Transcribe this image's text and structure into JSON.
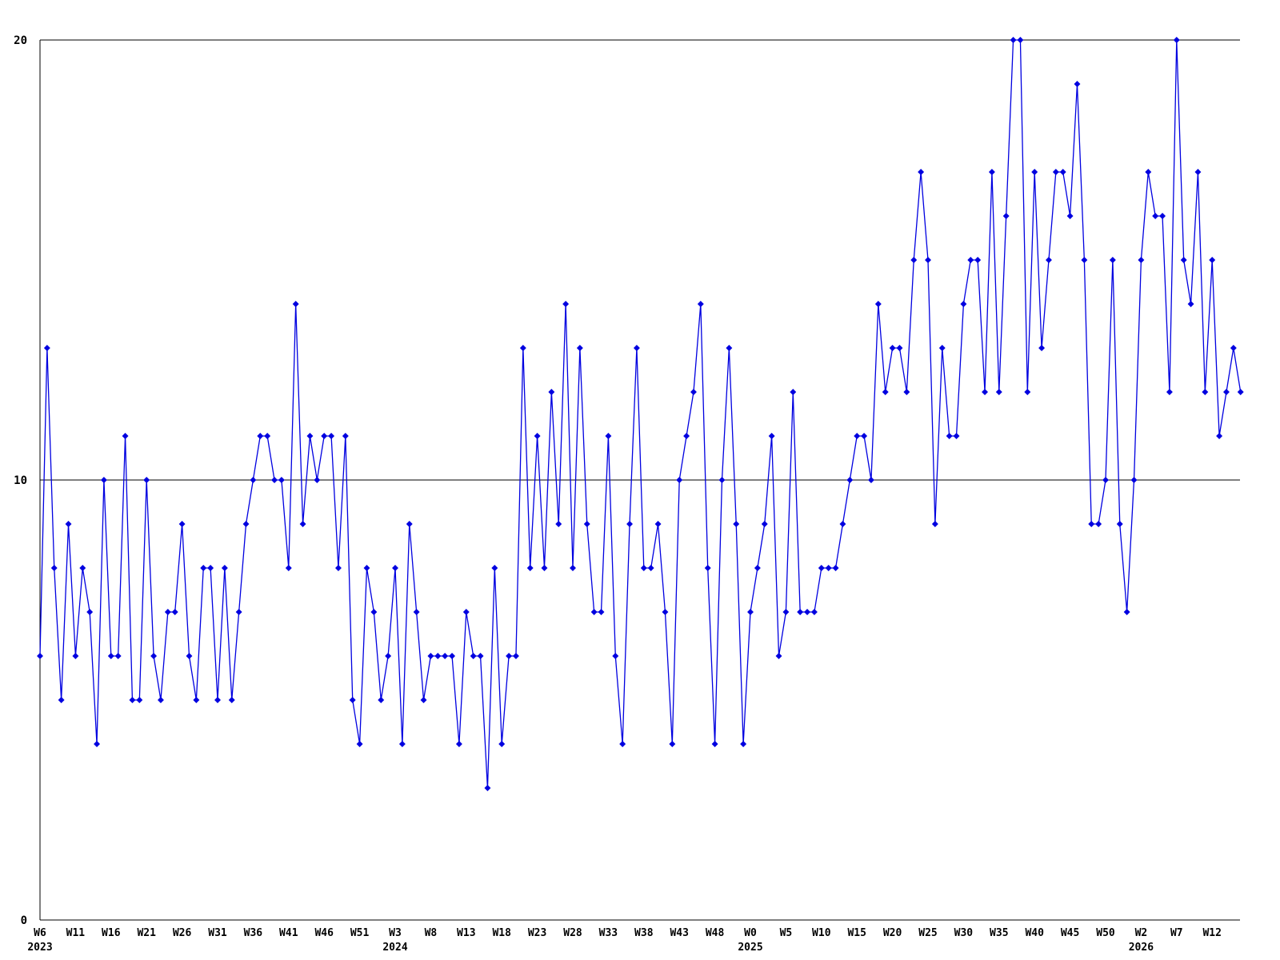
{
  "chart_data": {
    "type": "line",
    "title": "",
    "xlabel": "",
    "ylabel": "",
    "ylim": [
      0,
      20
    ],
    "yticks": [
      "0",
      "10",
      "20"
    ],
    "grid_levels": [
      10,
      20
    ],
    "legend": "none",
    "line_color": "#0000e0",
    "axis_color": "#000000",
    "marker": "diamond",
    "x_tick_every": 5,
    "ticks": [
      {
        "label": "W6",
        "year": "2023"
      },
      {
        "label": "W11"
      },
      {
        "label": "W16"
      },
      {
        "label": "W21"
      },
      {
        "label": "W26"
      },
      {
        "label": "W31"
      },
      {
        "label": "W36"
      },
      {
        "label": "W41"
      },
      {
        "label": "W46"
      },
      {
        "label": "W51"
      },
      {
        "label": "W3",
        "year": "2024"
      },
      {
        "label": "W8"
      },
      {
        "label": "W13"
      },
      {
        "label": "W18"
      },
      {
        "label": "W23"
      },
      {
        "label": "W28"
      },
      {
        "label": "W33"
      },
      {
        "label": "W38"
      },
      {
        "label": "W43"
      },
      {
        "label": "W48"
      },
      {
        "label": "W0",
        "year": "2025"
      },
      {
        "label": "W5"
      },
      {
        "label": "W10"
      },
      {
        "label": "W15"
      },
      {
        "label": "W20"
      },
      {
        "label": "W25"
      },
      {
        "label": "W30"
      },
      {
        "label": "W35"
      },
      {
        "label": "W40"
      },
      {
        "label": "W45"
      },
      {
        "label": "W50"
      },
      {
        "label": "W2",
        "year": "2026"
      },
      {
        "label": "W7"
      },
      {
        "label": "W12"
      }
    ],
    "values": [
      6,
      13,
      8,
      5,
      9,
      6,
      8,
      7,
      4,
      10,
      6,
      6,
      11,
      5,
      5,
      10,
      6,
      5,
      7,
      7,
      9,
      6,
      5,
      8,
      8,
      5,
      8,
      5,
      7,
      9,
      10,
      11,
      11,
      10,
      10,
      8,
      14,
      9,
      11,
      10,
      11,
      11,
      8,
      11,
      5,
      4,
      8,
      7,
      5,
      6,
      8,
      4,
      9,
      7,
      5,
      6,
      6,
      6,
      6,
      4,
      7,
      6,
      6,
      3,
      8,
      4,
      6,
      6,
      13,
      8,
      11,
      8,
      12,
      9,
      14,
      8,
      13,
      9,
      7,
      7,
      11,
      6,
      4,
      9,
      13,
      8,
      8,
      9,
      7,
      4,
      10,
      11,
      12,
      14,
      8,
      4,
      10,
      13,
      9,
      4,
      7,
      8,
      9,
      11,
      6,
      7,
      12,
      7,
      7,
      7,
      8,
      8,
      8,
      9,
      10,
      11,
      11,
      10,
      14,
      12,
      13,
      13,
      12,
      15,
      17,
      15,
      9,
      13,
      11,
      11,
      14,
      15,
      15,
      12,
      17,
      12,
      16,
      20,
      20,
      12,
      17,
      13,
      15,
      17,
      17,
      16,
      19,
      15,
      9,
      9,
      10,
      15,
      9,
      7,
      10,
      15,
      17,
      16,
      16,
      12,
      20,
      15,
      14,
      17,
      12,
      15,
      11,
      12,
      13,
      12
    ]
  }
}
